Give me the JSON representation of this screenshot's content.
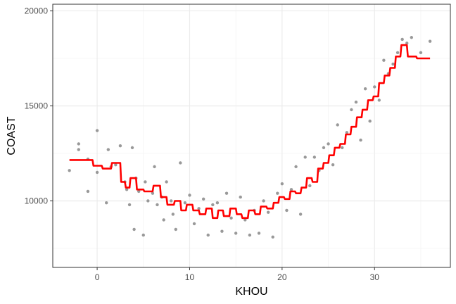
{
  "chart_data": {
    "type": "scatter",
    "title": "",
    "xlabel": "KHOU",
    "ylabel": "COAST",
    "xlim": [
      -4.8,
      38.2
    ],
    "ylim": [
      6500,
      20350
    ],
    "xticks": [
      0,
      10,
      20,
      30
    ],
    "yticks": [
      10000,
      15000,
      20000
    ],
    "x_tick_labels": [
      "0",
      "10",
      "20",
      "30"
    ],
    "y_tick_labels": [
      "10000",
      "15000",
      "20000"
    ],
    "grid": true,
    "legend": "none",
    "colors": {
      "points": "#999999",
      "fit": "#ff0000",
      "grid_major": "#ebebeb",
      "grid_minor": "#f4f4f4",
      "border": "#333333"
    },
    "series": [
      {
        "kind": "points",
        "x": [
          -3,
          -2,
          -2,
          -1,
          -1,
          0,
          0,
          1,
          1.2,
          1.5,
          2,
          2.5,
          3,
          3.2,
          3.5,
          3.8,
          4,
          4.2,
          4.5,
          5,
          5.2,
          5.5,
          6,
          6.2,
          6.5,
          7,
          7.2,
          7.5,
          8,
          8.2,
          8.5,
          9,
          9.5,
          10,
          10.5,
          11,
          11.5,
          12,
          12.5,
          13,
          13.5,
          14,
          14.5,
          15,
          15.5,
          16,
          16.5,
          17,
          17.5,
          18,
          18.5,
          19,
          19.5,
          20,
          20.5,
          21,
          21.5,
          22,
          22.5,
          23,
          23.5,
          24,
          24.5,
          25,
          25.5,
          26,
          26.5,
          27,
          27.5,
          28,
          28.5,
          29,
          29.5,
          30,
          30.5,
          31,
          31.5,
          32,
          32.5,
          33,
          33.5,
          34,
          35,
          36
        ],
        "y": [
          11600,
          13000,
          12700,
          10500,
          12200,
          13700,
          11500,
          9900,
          12700,
          11800,
          11900,
          12900,
          11000,
          10600,
          9800,
          12800,
          8500,
          11200,
          10500,
          8200,
          11000,
          10000,
          10400,
          11800,
          9800,
          10200,
          9000,
          11000,
          10000,
          9300,
          8500,
          12000,
          9900,
          10300,
          8800,
          9600,
          10100,
          8200,
          9800,
          9900,
          8400,
          10400,
          9100,
          8300,
          10200,
          9000,
          8200,
          9500,
          8300,
          10000,
          9400,
          8100,
          10400,
          10900,
          9500,
          10600,
          11800,
          9300,
          12300,
          10800,
          12300,
          11600,
          12800,
          13000,
          11900,
          14000,
          12800,
          13600,
          14800,
          15200,
          13200,
          15900,
          14200,
          16000,
          15300,
          17400,
          16700,
          17200,
          17800,
          18500,
          18300,
          18600,
          17800,
          18400
        ]
      },
      {
        "kind": "line",
        "name": "",
        "x": [
          -3,
          -0.5,
          -0.4,
          0.5,
          0.6,
          1.5,
          1.6,
          2.5,
          2.6,
          3,
          3.1,
          3.5,
          3.6,
          4.2,
          4.3,
          5,
          5.1,
          6,
          6.1,
          6.8,
          6.9,
          7.5,
          7.6,
          8.3,
          8.4,
          9,
          9.1,
          9.6,
          9.7,
          10.3,
          10.4,
          11,
          11.1,
          11.7,
          11.8,
          12.4,
          12.5,
          13,
          13.1,
          13.6,
          13.7,
          14.3,
          14.4,
          15,
          15.1,
          15.6,
          15.7,
          16.3,
          16.4,
          17,
          17.1,
          17.6,
          17.7,
          18.3,
          18.4,
          19,
          19.1,
          19.6,
          19.7,
          20.2,
          20.3,
          20.8,
          20.9,
          21.4,
          21.5,
          22,
          22.1,
          22.6,
          22.7,
          23.2,
          23.3,
          23.8,
          23.9,
          24.4,
          24.5,
          25,
          25.1,
          25.6,
          25.7,
          26.2,
          26.3,
          26.8,
          26.9,
          27.4,
          27.5,
          28,
          28.1,
          28.6,
          28.7,
          29.2,
          29.3,
          29.8,
          29.9,
          30.4,
          30.5,
          31,
          31.1,
          31.6,
          31.7,
          32.2,
          32.3,
          32.8,
          32.9,
          33.5,
          33.6,
          34.5,
          34.6,
          36
        ],
        "y": [
          12150,
          12150,
          11850,
          11850,
          11700,
          11700,
          12000,
          12000,
          11000,
          11000,
          10700,
          10700,
          11200,
          11200,
          10600,
          10600,
          10500,
          10500,
          10800,
          10800,
          10200,
          10200,
          9800,
          9800,
          10000,
          10000,
          9500,
          9500,
          9800,
          9800,
          9500,
          9500,
          9300,
          9300,
          9600,
          9600,
          9100,
          9100,
          9500,
          9500,
          9200,
          9200,
          9600,
          9600,
          9300,
          9300,
          9100,
          9100,
          9500,
          9500,
          9300,
          9300,
          9700,
          9700,
          9600,
          9600,
          9900,
          9900,
          10200,
          10200,
          10100,
          10100,
          10500,
          10500,
          10400,
          10400,
          10700,
          10700,
          11200,
          11200,
          11000,
          11000,
          11700,
          11700,
          12000,
          12000,
          12400,
          12400,
          12800,
          12800,
          13000,
          13000,
          13500,
          13500,
          13900,
          13900,
          14400,
          14400,
          14800,
          14800,
          15300,
          15300,
          15500,
          15500,
          16200,
          16200,
          16600,
          16600,
          17000,
          17000,
          17600,
          17600,
          18200,
          18200,
          17600,
          17600,
          17500,
          17500
        ]
      }
    ]
  }
}
